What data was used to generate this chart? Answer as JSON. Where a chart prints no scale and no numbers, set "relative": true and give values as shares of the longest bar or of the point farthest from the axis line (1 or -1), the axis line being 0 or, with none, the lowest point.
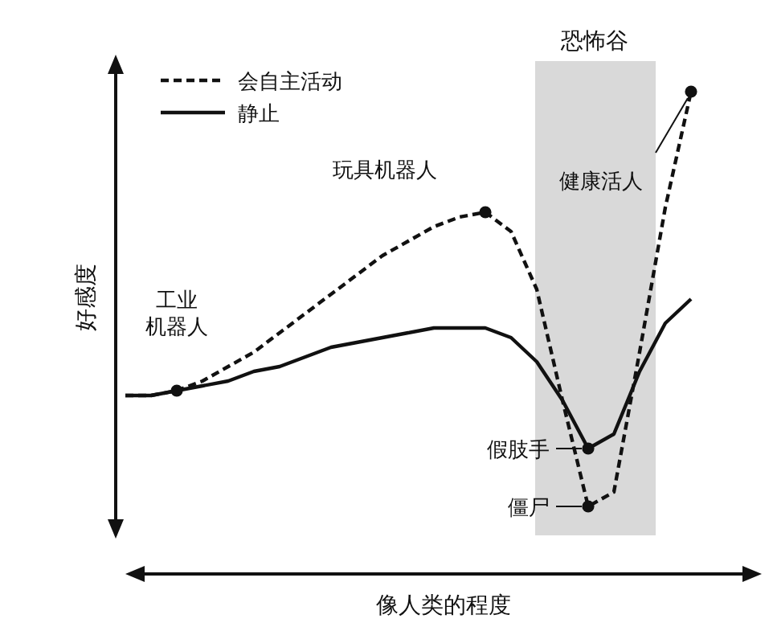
{
  "chart_data": {
    "type": "line",
    "relative": true,
    "xlabel": "像人类的程度",
    "ylabel": "好感度",
    "categories": [
      null,
      null,
      null,
      null,
      null,
      null,
      null,
      null,
      null,
      null,
      null,
      null,
      null,
      null,
      null,
      null,
      null,
      null,
      null,
      null,
      null,
      null,
      null
    ],
    "series": [
      {
        "name": "会自主活动",
        "color": "#111111",
        "line_style": "dashed",
        "values": [
          0.37,
          0.37,
          0.38,
          0.4,
          0.43,
          0.46,
          0.5,
          0.54,
          0.58,
          0.62,
          0.66,
          0.69,
          0.72,
          0.74,
          0.75,
          0.71,
          0.59,
          0.36,
          0.14,
          0.17,
          0.46,
          0.76,
          1.0
        ]
      },
      {
        "name": "静止",
        "color": "#111111",
        "line_style": "solid",
        "values": [
          0.37,
          0.37,
          0.38,
          0.39,
          0.4,
          0.42,
          0.43,
          0.45,
          0.47,
          0.48,
          0.49,
          0.5,
          0.51,
          0.51,
          0.51,
          0.49,
          0.44,
          0.36,
          0.26,
          0.29,
          0.42,
          0.52,
          0.57
        ]
      }
    ],
    "annotations": [
      "恐怖谷",
      "工业机器人",
      "玩具机器人",
      "健康活人",
      "假肢手",
      "僵尸"
    ],
    "legend": "top left"
  }
}
